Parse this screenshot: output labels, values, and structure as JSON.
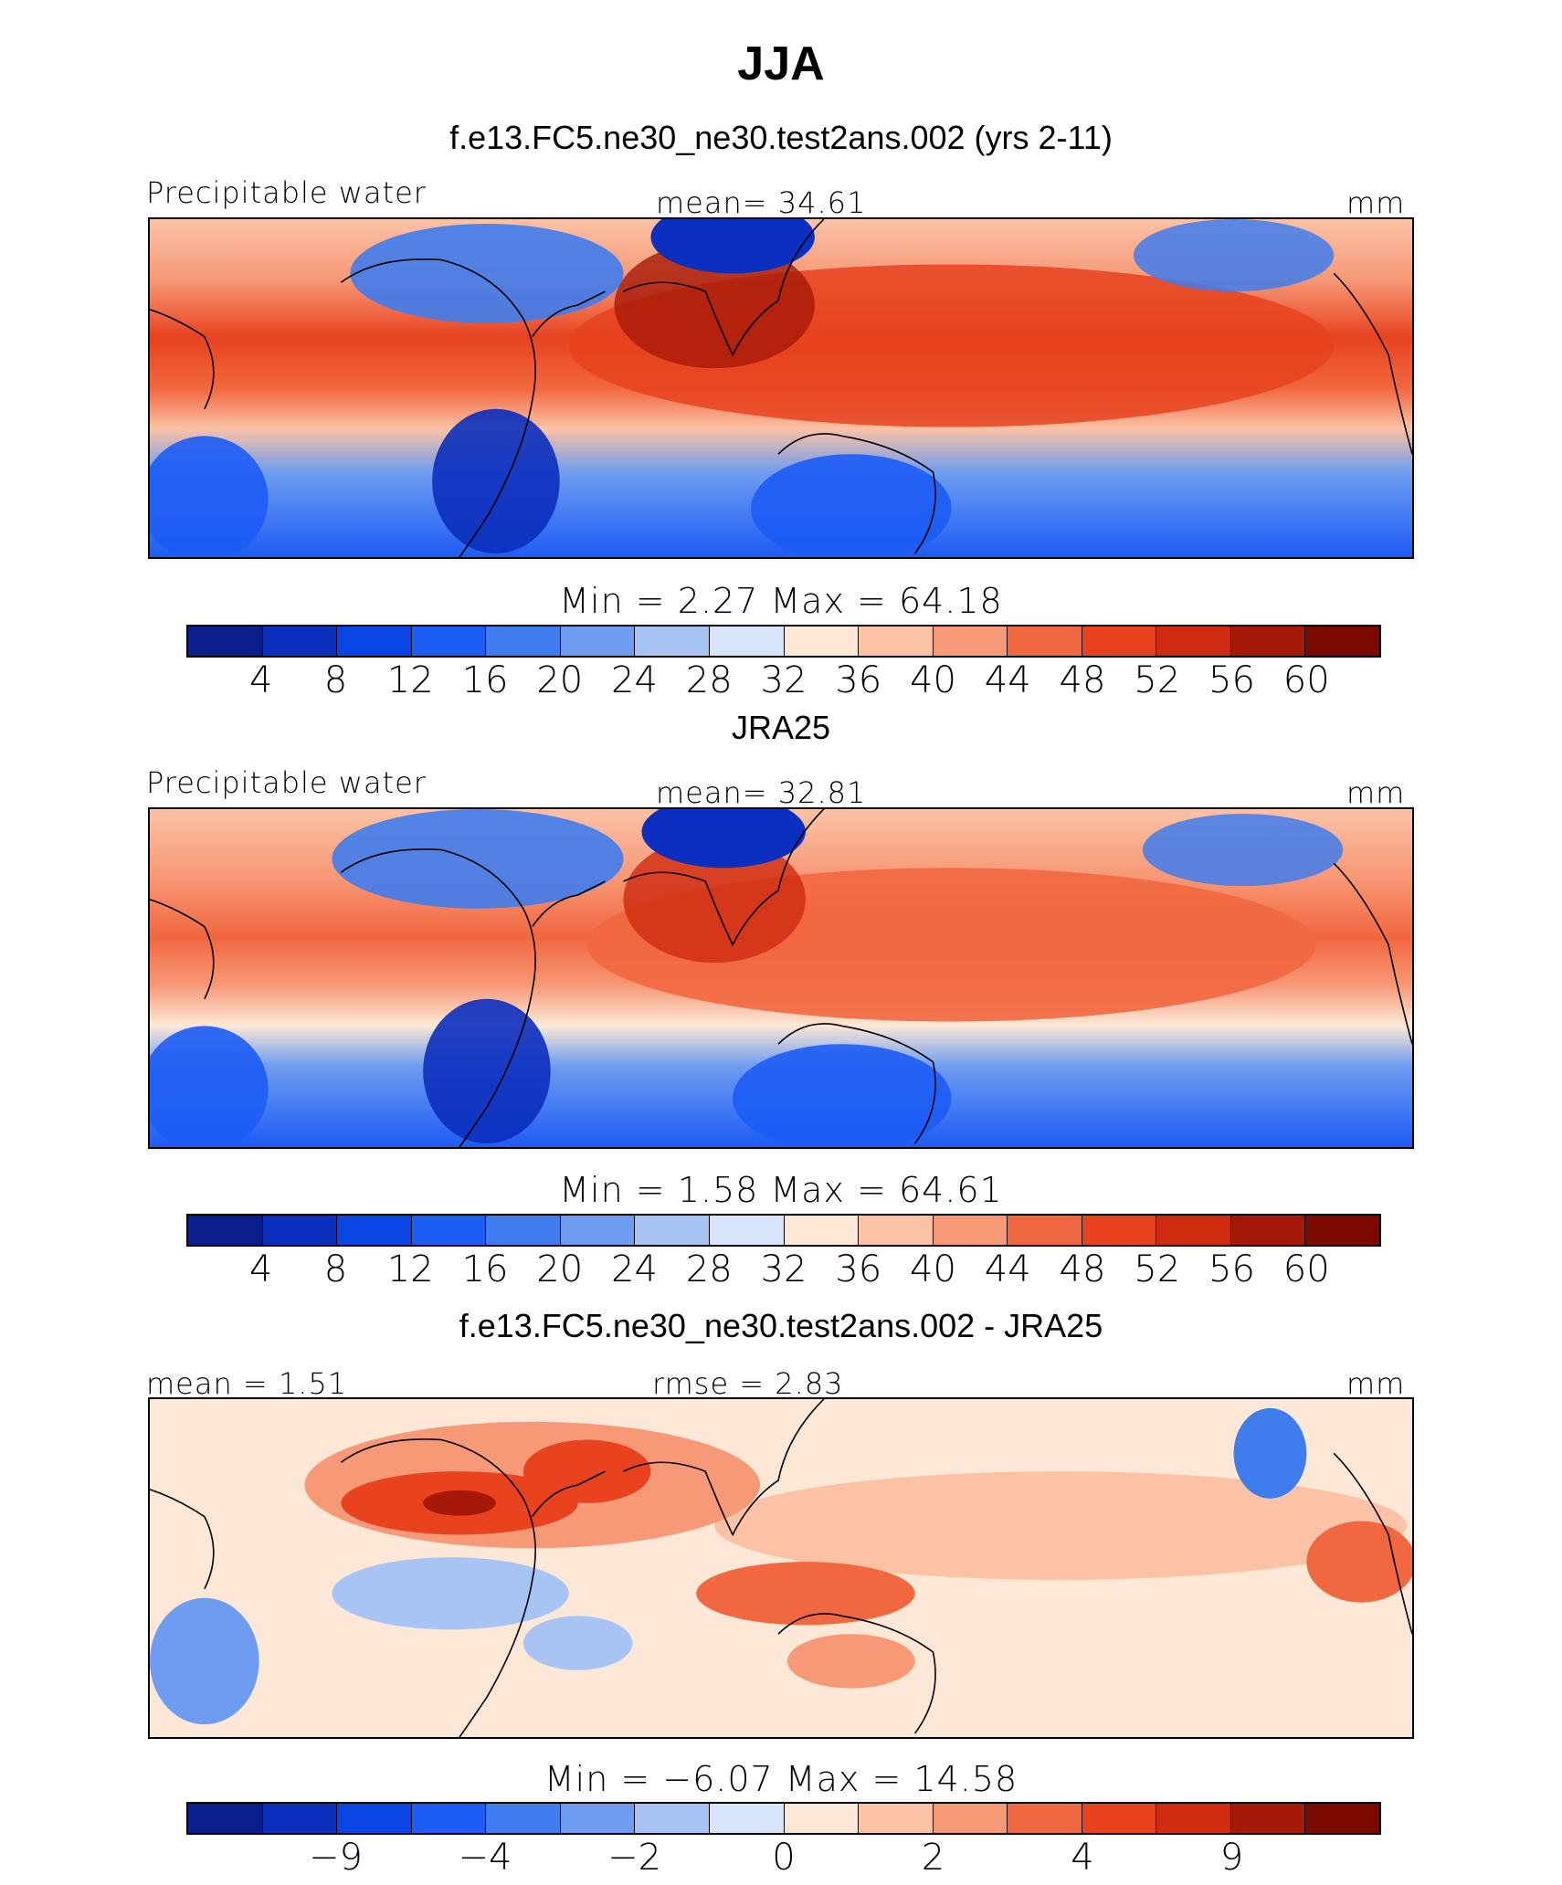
{
  "figure": {
    "title": "JJA"
  },
  "panels": [
    {
      "title": "f.e13.FC5.ne30_ne30.test2ans.002 (yrs 2-11)",
      "left_label": "Precipitable water",
      "center_label": "mean=   34.61",
      "right_label": "mm",
      "stats": "Min  =      2.27  Max  =    64.18",
      "kind": "abs"
    },
    {
      "title": "JRA25",
      "left_label": "Precipitable water",
      "center_label": "mean=   32.81",
      "right_label": "mm",
      "stats": "Min  =      1.58  Max  =    64.61",
      "kind": "abs"
    },
    {
      "title": "f.e13.FC5.ne30_ne30.test2ans.002 - JRA25",
      "left_label": "mean  =    1.51",
      "center_label": "rmse  =    2.83",
      "right_label": "mm",
      "stats": "Min  =   −6.07  Max  =    14.58",
      "kind": "diff"
    }
  ],
  "colorbar": {
    "colors": [
      "#0a1e8c",
      "#0b2fbe",
      "#0a45e6",
      "#1d5cf5",
      "#3f7ced",
      "#6e9cf0",
      "#a7c4f5",
      "#d6e5fb",
      "#fde8d8",
      "#fbc2a6",
      "#f79876",
      "#f1673f",
      "#e8421f",
      "#d02a10",
      "#a61908",
      "#7d0a00"
    ],
    "abs_ticks": [
      "4",
      "8",
      "12",
      "16",
      "20",
      "24",
      "28",
      "32",
      "36",
      "40",
      "44",
      "48",
      "52",
      "56",
      "60"
    ],
    "diff_ticks": [
      "−9",
      "−4",
      "−2",
      "0",
      "2",
      "4",
      "9"
    ]
  }
}
